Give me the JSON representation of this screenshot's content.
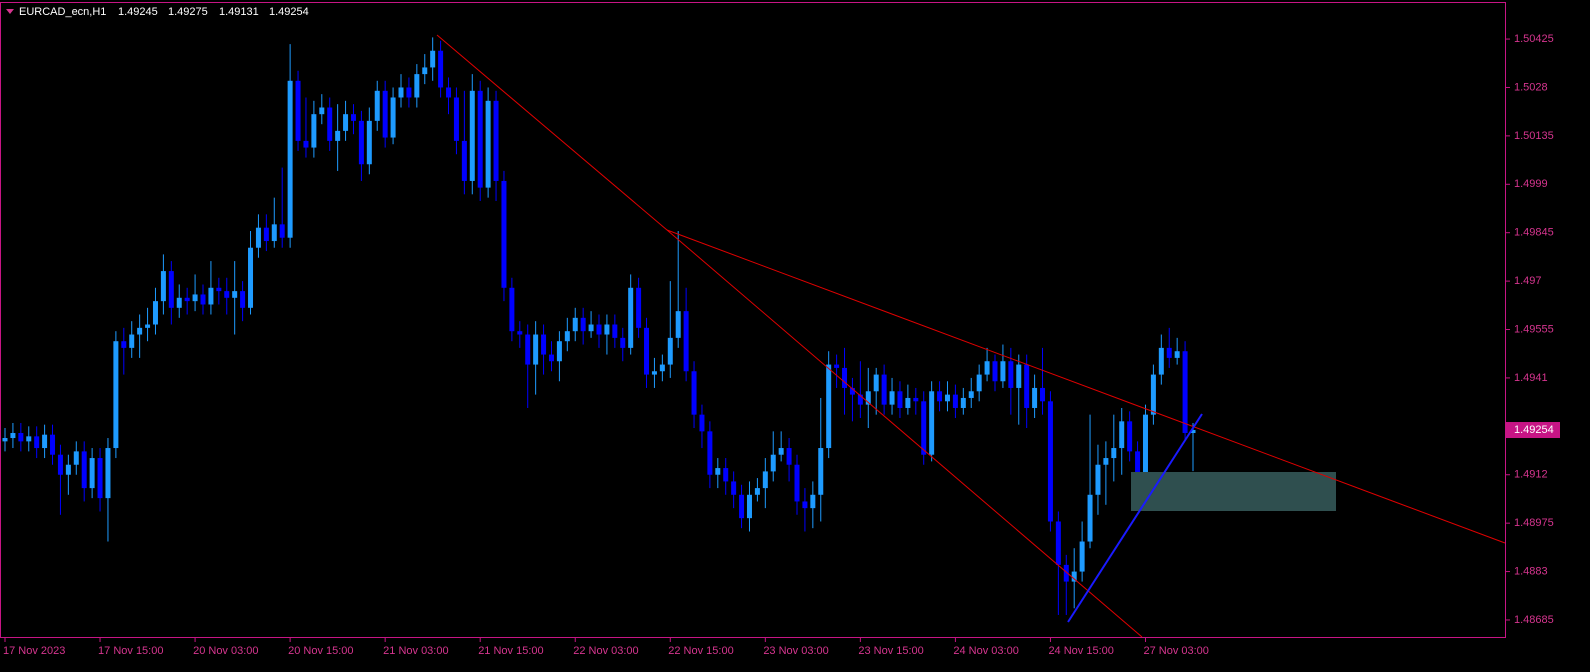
{
  "chart_data": {
    "type": "candlestick",
    "symbol": "EURCAD_ecn,H1",
    "up_color": "#1e9bff",
    "down_color": "#0000ff",
    "axis_color": "#c71585",
    "ylim": [
      1.48634,
      1.50542
    ],
    "yticks": [
      1.50425,
      1.5028,
      1.50135,
      1.4999,
      1.49845,
      1.497,
      1.49555,
      1.4941,
      1.4912,
      1.48975,
      1.4883,
      1.48685
    ],
    "xticks": [
      {
        "value": 0,
        "label": "17 Nov 2023"
      },
      {
        "value": 12,
        "label": "17 Nov 15:00"
      },
      {
        "value": 24,
        "label": "20 Nov 03:00"
      },
      {
        "value": 36,
        "label": "20 Nov 15:00"
      },
      {
        "value": 48,
        "label": "21 Nov 03:00"
      },
      {
        "value": 60,
        "label": "21 Nov 15:00"
      },
      {
        "value": 72,
        "label": "22 Nov 03:00"
      },
      {
        "value": 84,
        "label": "22 Nov 15:00"
      },
      {
        "value": 96,
        "label": "23 Nov 03:00"
      },
      {
        "value": 108,
        "label": "23 Nov 15:00"
      },
      {
        "value": 120,
        "label": "24 Nov 03:00"
      },
      {
        "value": 132,
        "label": "24 Nov 15:00"
      },
      {
        "value": 144,
        "label": "27 Nov 03:00"
      }
    ],
    "ohlc": [
      [
        1.4922,
        1.4926,
        1.4919,
        1.4923
      ],
      [
        1.4923,
        1.49275,
        1.492,
        1.49245
      ],
      [
        1.49245,
        1.49275,
        1.4919,
        1.4922
      ],
      [
        1.4922,
        1.49265,
        1.4919,
        1.49235
      ],
      [
        1.49235,
        1.49265,
        1.4917,
        1.492
      ],
      [
        1.492,
        1.4927,
        1.4917,
        1.4924
      ],
      [
        1.4924,
        1.4927,
        1.4915,
        1.4918
      ],
      [
        1.4918,
        1.4921,
        1.49,
        1.4912
      ],
      [
        1.4912,
        1.4918,
        1.4906,
        1.4915
      ],
      [
        1.4915,
        1.4922,
        1.4912,
        1.4919
      ],
      [
        1.4919,
        1.4922,
        1.4904,
        1.4908
      ],
      [
        1.4908,
        1.492,
        1.4905,
        1.4917
      ],
      [
        1.4917,
        1.492,
        1.4901,
        1.4905
      ],
      [
        1.4905,
        1.4923,
        1.4892,
        1.492
      ],
      [
        1.492,
        1.4955,
        1.4917,
        1.4952
      ],
      [
        1.4952,
        1.4956,
        1.4942,
        1.495
      ],
      [
        1.495,
        1.4958,
        1.4947,
        1.4954
      ],
      [
        1.4954,
        1.496,
        1.4947,
        1.4956
      ],
      [
        1.4956,
        1.4962,
        1.4952,
        1.4957
      ],
      [
        1.4957,
        1.4968,
        1.4954,
        1.4964
      ],
      [
        1.4964,
        1.4978,
        1.496,
        1.4973
      ],
      [
        1.4973,
        1.4976,
        1.4957,
        1.4962
      ],
      [
        1.4962,
        1.4969,
        1.4959,
        1.4965
      ],
      [
        1.4965,
        1.4968,
        1.496,
        1.4964
      ],
      [
        1.4964,
        1.4972,
        1.4961,
        1.4966
      ],
      [
        1.4966,
        1.4969,
        1.496,
        1.4963
      ],
      [
        1.4963,
        1.4976,
        1.496,
        1.4968
      ],
      [
        1.4968,
        1.4971,
        1.4963,
        1.4967
      ],
      [
        1.4967,
        1.4971,
        1.496,
        1.4965
      ],
      [
        1.4965,
        1.4976,
        1.4954,
        1.4967
      ],
      [
        1.4967,
        1.497,
        1.4958,
        1.4962
      ],
      [
        1.4962,
        1.4985,
        1.496,
        1.498
      ],
      [
        1.498,
        1.499,
        1.4977,
        1.4986
      ],
      [
        1.4986,
        1.499,
        1.4979,
        1.4982
      ],
      [
        1.4982,
        1.4995,
        1.498,
        1.4987
      ],
      [
        1.4987,
        1.5004,
        1.498,
        1.4983
      ],
      [
        1.4983,
        1.5041,
        1.498,
        1.503
      ],
      [
        1.503,
        1.5033,
        1.5009,
        1.5012
      ],
      [
        1.5012,
        1.5025,
        1.5007,
        1.501
      ],
      [
        1.501,
        1.5024,
        1.5007,
        1.502
      ],
      [
        1.502,
        1.5026,
        1.5017,
        1.5022
      ],
      [
        1.5022,
        1.5025,
        1.5009,
        1.5012
      ],
      [
        1.5012,
        1.5023,
        1.5003,
        1.5015
      ],
      [
        1.5015,
        1.5024,
        1.5012,
        1.502
      ],
      [
        1.502,
        1.5023,
        1.5014,
        1.5018
      ],
      [
        1.5018,
        1.5021,
        1.5,
        1.5005
      ],
      [
        1.5005,
        1.5022,
        1.5002,
        1.5018
      ],
      [
        1.5018,
        1.503,
        1.5015,
        1.5027
      ],
      [
        1.5027,
        1.503,
        1.501,
        1.5013
      ],
      [
        1.5013,
        1.5028,
        1.5011,
        1.5025
      ],
      [
        1.5025,
        1.5032,
        1.5022,
        1.5028
      ],
      [
        1.5028,
        1.5031,
        1.5022,
        1.5025
      ],
      [
        1.5025,
        1.5035,
        1.5022,
        1.5032
      ],
      [
        1.5032,
        1.5038,
        1.5029,
        1.5034
      ],
      [
        1.5034,
        1.5043,
        1.503,
        1.5039
      ],
      [
        1.5039,
        1.5042,
        1.5025,
        1.5028
      ],
      [
        1.5028,
        1.5031,
        1.502,
        1.5025
      ],
      [
        1.5025,
        1.5028,
        1.5008,
        1.5012
      ],
      [
        1.5012,
        1.5027,
        1.4996,
        1.5
      ],
      [
        1.5,
        1.5032,
        1.4996,
        1.5027
      ],
      [
        1.5027,
        1.503,
        1.4994,
        1.4998
      ],
      [
        1.4998,
        1.5028,
        1.4995,
        1.5024
      ],
      [
        1.5024,
        1.5027,
        1.4994,
        1.5
      ],
      [
        1.5,
        1.5003,
        1.4964,
        1.4968
      ],
      [
        1.4968,
        1.4971,
        1.4952,
        1.4955
      ],
      [
        1.4955,
        1.4958,
        1.495,
        1.4954
      ],
      [
        1.4954,
        1.4957,
        1.4932,
        1.4945
      ],
      [
        1.4945,
        1.4958,
        1.4936,
        1.4954
      ],
      [
        1.4954,
        1.4957,
        1.4942,
        1.4948
      ],
      [
        1.4948,
        1.4952,
        1.4943,
        1.4946
      ],
      [
        1.4946,
        1.4955,
        1.494,
        1.4952
      ],
      [
        1.4952,
        1.4959,
        1.4949,
        1.4955
      ],
      [
        1.4955,
        1.4962,
        1.4952,
        1.4959
      ],
      [
        1.4959,
        1.4962,
        1.4951,
        1.4955
      ],
      [
        1.4955,
        1.4961,
        1.4953,
        1.4957
      ],
      [
        1.4957,
        1.496,
        1.495,
        1.4954
      ],
      [
        1.4954,
        1.496,
        1.4948,
        1.4957
      ],
      [
        1.4957,
        1.496,
        1.495,
        1.4953
      ],
      [
        1.4953,
        1.4956,
        1.4946,
        1.495
      ],
      [
        1.495,
        1.4972,
        1.4948,
        1.4968
      ],
      [
        1.4968,
        1.4971,
        1.4953,
        1.4956
      ],
      [
        1.4956,
        1.4959,
        1.4938,
        1.4942
      ],
      [
        1.4942,
        1.4947,
        1.4938,
        1.4943
      ],
      [
        1.4943,
        1.4948,
        1.494,
        1.4945
      ],
      [
        1.4945,
        1.497,
        1.4941,
        1.4953
      ],
      [
        1.4953,
        1.4985,
        1.495,
        1.4961
      ],
      [
        1.4961,
        1.4968,
        1.494,
        1.4943
      ],
      [
        1.4943,
        1.4946,
        1.4926,
        1.493
      ],
      [
        1.493,
        1.4933,
        1.492,
        1.4925
      ],
      [
        1.4925,
        1.4928,
        1.4908,
        1.4912
      ],
      [
        1.4912,
        1.4917,
        1.4908,
        1.4914
      ],
      [
        1.4914,
        1.4917,
        1.4906,
        1.491
      ],
      [
        1.491,
        1.4913,
        1.4902,
        1.4906
      ],
      [
        1.4906,
        1.4909,
        1.4896,
        1.4899
      ],
      [
        1.4899,
        1.491,
        1.4895,
        1.4906
      ],
      [
        1.4906,
        1.4911,
        1.4904,
        1.4908
      ],
      [
        1.4908,
        1.4917,
        1.4902,
        1.4913
      ],
      [
        1.4913,
        1.4925,
        1.491,
        1.4918
      ],
      [
        1.4918,
        1.4925,
        1.4916,
        1.492
      ],
      [
        1.492,
        1.4923,
        1.491,
        1.4915
      ],
      [
        1.4915,
        1.4918,
        1.49,
        1.4904
      ],
      [
        1.4904,
        1.4908,
        1.4895,
        1.4902
      ],
      [
        1.4902,
        1.491,
        1.4896,
        1.4906
      ],
      [
        1.4906,
        1.4935,
        1.4898,
        1.492
      ],
      [
        1.492,
        1.4949,
        1.4917,
        1.4945
      ],
      [
        1.4945,
        1.4948,
        1.4938,
        1.4944
      ],
      [
        1.4944,
        1.495,
        1.493,
        1.4938
      ],
      [
        1.4938,
        1.4941,
        1.4928,
        1.4936
      ],
      [
        1.4936,
        1.4946,
        1.4929,
        1.4933
      ],
      [
        1.4933,
        1.4944,
        1.4926,
        1.4937
      ],
      [
        1.4937,
        1.4944,
        1.493,
        1.4942
      ],
      [
        1.4942,
        1.4945,
        1.493,
        1.4933
      ],
      [
        1.4933,
        1.4941,
        1.493,
        1.4937
      ],
      [
        1.4937,
        1.494,
        1.4929,
        1.4932
      ],
      [
        1.4932,
        1.4939,
        1.493,
        1.4935
      ],
      [
        1.4935,
        1.4938,
        1.493,
        1.4934
      ],
      [
        1.4934,
        1.4937,
        1.4915,
        1.4918
      ],
      [
        1.4918,
        1.494,
        1.4916,
        1.4937
      ],
      [
        1.4937,
        1.494,
        1.4931,
        1.4934
      ],
      [
        1.4934,
        1.494,
        1.4931,
        1.4936
      ],
      [
        1.4936,
        1.4939,
        1.4929,
        1.4932
      ],
      [
        1.4932,
        1.4938,
        1.493,
        1.4935
      ],
      [
        1.4935,
        1.4941,
        1.4932,
        1.4937
      ],
      [
        1.4937,
        1.4945,
        1.4934,
        1.4942
      ],
      [
        1.4942,
        1.495,
        1.494,
        1.4946
      ],
      [
        1.4946,
        1.4948,
        1.4937,
        1.494
      ],
      [
        1.494,
        1.4951,
        1.4938,
        1.4946
      ],
      [
        1.4946,
        1.495,
        1.493,
        1.4938
      ],
      [
        1.4938,
        1.4948,
        1.4927,
        1.4945
      ],
      [
        1.4945,
        1.4948,
        1.4926,
        1.4932
      ],
      [
        1.4932,
        1.4942,
        1.4929,
        1.4938
      ],
      [
        1.4938,
        1.495,
        1.493,
        1.4934
      ],
      [
        1.4934,
        1.4937,
        1.4895,
        1.4898
      ],
      [
        1.4898,
        1.4901,
        1.487,
        1.4885
      ],
      [
        1.4885,
        1.4888,
        1.487,
        1.488
      ],
      [
        1.488,
        1.489,
        1.4872,
        1.4883
      ],
      [
        1.4883,
        1.4898,
        1.488,
        1.4892
      ],
      [
        1.4892,
        1.493,
        1.489,
        1.4906
      ],
      [
        1.4906,
        1.4921,
        1.49,
        1.4915
      ],
      [
        1.4915,
        1.4922,
        1.4903,
        1.4917
      ],
      [
        1.4917,
        1.493,
        1.491,
        1.492
      ],
      [
        1.492,
        1.4932,
        1.4912,
        1.4928
      ],
      [
        1.4928,
        1.4931,
        1.4916,
        1.4919
      ],
      [
        1.4919,
        1.4922,
        1.4905,
        1.4908
      ],
      [
        1.4908,
        1.4933,
        1.4905,
        1.493
      ],
      [
        1.493,
        1.4945,
        1.4927,
        1.4942
      ],
      [
        1.4942,
        1.4954,
        1.4939,
        1.495
      ],
      [
        1.495,
        1.4956,
        1.4944,
        1.4947
      ],
      [
        1.4947,
        1.4953,
        1.4945,
        1.4949
      ],
      [
        1.4949,
        1.4952,
        1.4922,
        1.49245
      ],
      [
        1.49245,
        1.49275,
        1.49131,
        1.49254
      ]
    ]
  }
}
